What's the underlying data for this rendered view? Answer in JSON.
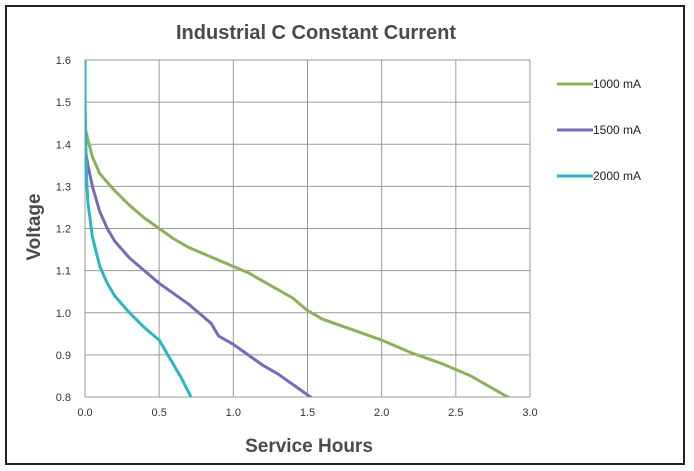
{
  "chart_data": {
    "type": "line",
    "title": "Industrial C Constant Current",
    "xlabel": "Service Hours",
    "ylabel": "Voltage",
    "xlim": [
      0,
      3.0
    ],
    "ylim": [
      0.8,
      1.6
    ],
    "x_ticks": [
      "0.0",
      "0.5",
      "1.0",
      "1.5",
      "2.0",
      "2.5",
      "3.0"
    ],
    "y_ticks": [
      "0.8",
      "0.9",
      "1.0",
      "1.1",
      "1.2",
      "1.3",
      "1.4",
      "1.5",
      "1.6"
    ],
    "grid": true,
    "legend_position": "right",
    "series": [
      {
        "name": "1000 mA",
        "color": "#8db05a",
        "x": [
          0,
          0.02,
          0.05,
          0.1,
          0.2,
          0.3,
          0.4,
          0.5,
          0.6,
          0.7,
          0.8,
          0.9,
          1.0,
          1.1,
          1.2,
          1.3,
          1.4,
          1.5,
          1.6,
          1.8,
          2.0,
          2.2,
          2.4,
          2.6,
          2.75,
          2.85,
          2.92
        ],
        "y": [
          1.44,
          1.41,
          1.37,
          1.33,
          1.29,
          1.255,
          1.225,
          1.2,
          1.175,
          1.155,
          1.14,
          1.125,
          1.11,
          1.095,
          1.075,
          1.055,
          1.035,
          1.005,
          0.985,
          0.96,
          0.935,
          0.905,
          0.88,
          0.85,
          0.82,
          0.8,
          0.79
        ]
      },
      {
        "name": "1500 mA",
        "color": "#7a6ab5",
        "x": [
          0,
          0.02,
          0.05,
          0.1,
          0.15,
          0.2,
          0.3,
          0.4,
          0.5,
          0.6,
          0.7,
          0.8,
          0.85,
          0.9,
          1.0,
          1.1,
          1.2,
          1.3,
          1.4,
          1.5,
          1.56,
          1.6
        ],
        "y": [
          1.39,
          1.35,
          1.3,
          1.24,
          1.2,
          1.17,
          1.13,
          1.1,
          1.07,
          1.045,
          1.02,
          0.99,
          0.975,
          0.945,
          0.925,
          0.9,
          0.875,
          0.855,
          0.83,
          0.805,
          0.79,
          0.78
        ]
      },
      {
        "name": "2000 mA",
        "color": "#29b6c8",
        "x": [
          0,
          0.0,
          0.01,
          0.02,
          0.05,
          0.1,
          0.15,
          0.2,
          0.3,
          0.4,
          0.5,
          0.55,
          0.6,
          0.65,
          0.7,
          0.73
        ],
        "y": [
          1.6,
          1.5,
          1.32,
          1.26,
          1.18,
          1.11,
          1.07,
          1.04,
          1.0,
          0.965,
          0.935,
          0.905,
          0.875,
          0.845,
          0.81,
          0.79
        ]
      }
    ]
  }
}
